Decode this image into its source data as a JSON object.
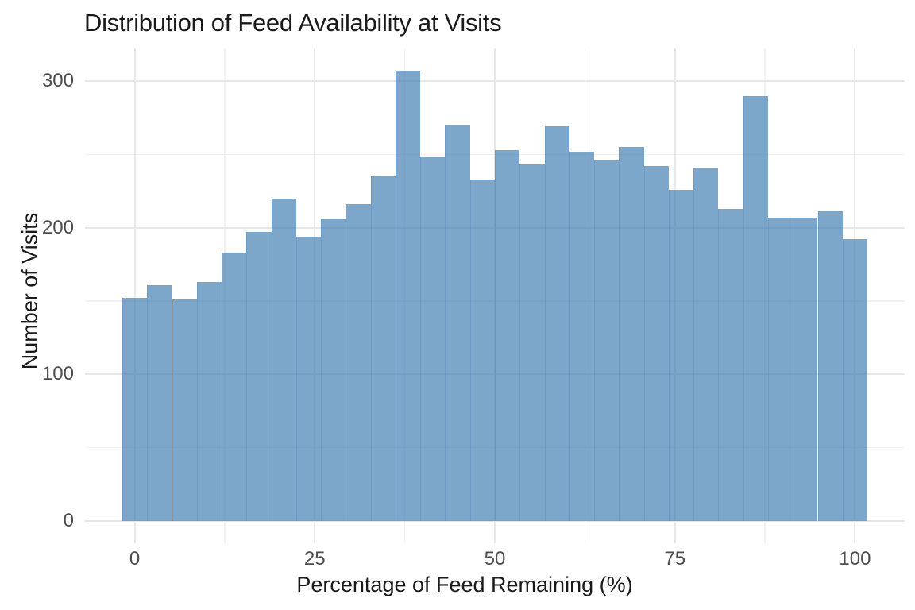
{
  "chart_data": {
    "type": "histogram",
    "title": "Distribution of Feed Availability at Visits",
    "xlabel": "Percentage of Feed Remaining (%)",
    "ylabel": "Number of Visits",
    "bin_width": 3.448,
    "bin_centers": [
      0,
      3.45,
      6.9,
      10.34,
      13.79,
      17.24,
      20.69,
      24.14,
      27.59,
      31.03,
      34.48,
      37.93,
      41.38,
      44.83,
      48.28,
      51.72,
      55.17,
      58.62,
      62.07,
      65.52,
      68.97,
      72.41,
      75.86,
      79.31,
      82.76,
      86.21,
      89.66,
      93.1,
      96.55,
      100
    ],
    "counts": [
      152,
      161,
      151,
      163,
      183,
      197,
      220,
      194,
      206,
      216,
      235,
      307,
      248,
      270,
      233,
      253,
      243,
      269,
      252,
      246,
      255,
      242,
      226,
      241,
      213,
      290,
      207,
      207,
      211,
      192
    ],
    "x_ticks": [
      0,
      25,
      50,
      75,
      100
    ],
    "y_ticks": [
      0,
      100,
      200,
      300
    ],
    "x_minor_ticks": [
      12.5,
      37.5,
      62.5,
      87.5
    ],
    "y_minor_ticks": [
      50,
      150,
      250
    ],
    "layout": {
      "xlim": [
        -6.9,
        106.9
      ],
      "ylim": [
        -15.4,
        322.4
      ],
      "grid": "major+minor",
      "legend": "none"
    },
    "colors": {
      "bar_fill": "#4682B4",
      "bar_alpha": 0.7,
      "grid_major": "#E7E7E7",
      "grid_minor": "#F2F2F2",
      "tick_text": "#4D4D4D",
      "title_text": "#1A1A1A",
      "background": "#FFFFFF"
    }
  }
}
